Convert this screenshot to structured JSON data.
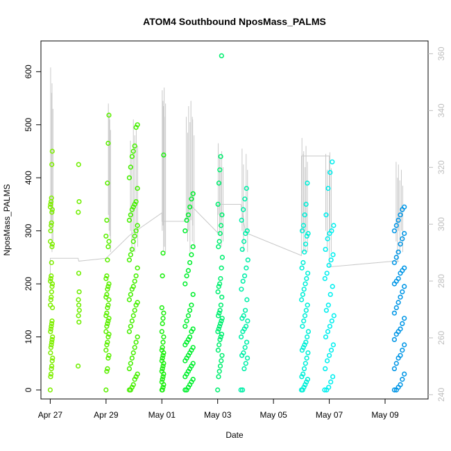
{
  "chart_data": {
    "type": "scatter",
    "title": "ATOM4 Southbound NposMass_PALMS",
    "xlabel": "Date",
    "ylabel": "NposMass_PALMS",
    "x_axis": {
      "type": "date",
      "range": [
        "2018-04-26T16:00",
        "2018-05-10T13:00"
      ],
      "ticks": [
        {
          "date": "2018-04-27",
          "label": "Apr 27"
        },
        {
          "date": "2018-04-29",
          "label": "Apr 29"
        },
        {
          "date": "2018-05-01",
          "label": "May 01"
        },
        {
          "date": "2018-05-03",
          "label": "May 03"
        },
        {
          "date": "2018-05-05",
          "label": "May 05"
        },
        {
          "date": "2018-05-07",
          "label": "May 07"
        },
        {
          "date": "2018-05-09",
          "label": "May 09"
        }
      ]
    },
    "y_axis": {
      "range": [
        -17,
        658
      ],
      "ticks": [
        0,
        100,
        200,
        300,
        400,
        500,
        600
      ]
    },
    "y2_axis": {
      "range": [
        238.5,
        364.5
      ],
      "ticks": [
        240,
        260,
        280,
        300,
        320,
        340,
        360
      ]
    },
    "colors": {
      "points_gradient": [
        "#7fef00",
        "#33ef00",
        "#00ef3a",
        "#00efa0",
        "#00efef",
        "#0096e6"
      ],
      "secondary_line": "#c8c8c8",
      "right_axis": "#bdbdbd",
      "frame": "#000000"
    },
    "flights": [
      {
        "start": "2018-04-27T00:00",
        "end": "2018-04-27T02:00",
        "color": "#7fef00",
        "values": [
          0,
          25,
          30,
          40,
          45,
          55,
          60,
          70,
          80,
          85,
          90,
          95,
          100,
          110,
          115,
          120,
          125,
          130,
          155,
          160,
          170,
          175,
          185,
          195,
          200,
          205,
          210,
          215,
          240,
          270,
          275,
          280,
          300,
          310,
          315,
          335,
          340,
          345,
          350,
          355,
          362,
          425,
          450
        ]
      },
      {
        "start": "2018-04-28T00:00",
        "end": "2018-04-28T01:00",
        "color": "#6fef00",
        "values": [
          45,
          128,
          140,
          150,
          160,
          170,
          185,
          220,
          335,
          355,
          425
        ]
      },
      {
        "start": "2018-04-29T00:00",
        "end": "2018-04-29T03:00",
        "color": "#5bef00",
        "values": [
          0,
          35,
          40,
          60,
          65,
          75,
          85,
          90,
          100,
          105,
          110,
          120,
          125,
          130,
          135,
          140,
          145,
          155,
          160,
          170,
          175,
          180,
          190,
          195,
          200,
          210,
          215,
          245,
          270,
          280,
          290,
          320,
          390,
          465,
          518
        ]
      },
      {
        "start": "2018-04-29T20:00",
        "end": "2018-04-30T04:00",
        "color": "#45ef00",
        "values": [
          0,
          0,
          5,
          10,
          20,
          25,
          30,
          40,
          50,
          60,
          70,
          80,
          90,
          100,
          110,
          120,
          130,
          140,
          150,
          160,
          165,
          170,
          180,
          190,
          195,
          205,
          215,
          230,
          245,
          255,
          265,
          280,
          290,
          300,
          310,
          320,
          330,
          340,
          345,
          350,
          355,
          380,
          400,
          420,
          440,
          450,
          460,
          495,
          500
        ]
      },
      {
        "start": "2018-05-01T00:00",
        "end": "2018-05-01T02:00",
        "color": "#1def10",
        "values": [
          0,
          0,
          5,
          10,
          15,
          20,
          25,
          30,
          35,
          40,
          45,
          50,
          55,
          60,
          65,
          70,
          75,
          80,
          90,
          100,
          110,
          125,
          135,
          145,
          155,
          215,
          258,
          443
        ]
      },
      {
        "start": "2018-05-01T20:00",
        "end": "2018-05-02T04:00",
        "color": "#00ef2e",
        "values": [
          0,
          0,
          5,
          10,
          15,
          20,
          25,
          30,
          35,
          40,
          45,
          50,
          55,
          60,
          65,
          70,
          75,
          80,
          85,
          90,
          95,
          100,
          110,
          115,
          120,
          130,
          140,
          150,
          160,
          180,
          200,
          215,
          225,
          240,
          255,
          270,
          300,
          320,
          330,
          345,
          360,
          370
        ]
      },
      {
        "start": "2018-05-03T00:00",
        "end": "2018-05-03T04:00",
        "color": "#00ef70",
        "values": [
          0,
          25,
          35,
          45,
          55,
          65,
          75,
          85,
          95,
          100,
          105,
          110,
          115,
          120,
          125,
          130,
          135,
          140,
          145,
          150,
          160,
          175,
          185,
          195,
          200,
          210,
          230,
          250,
          270,
          280,
          295,
          310,
          330,
          350,
          390,
          415,
          440,
          630
        ]
      },
      {
        "start": "2018-05-03T20:00",
        "end": "2018-05-04T02:00",
        "color": "#00efa8",
        "values": [
          0,
          0,
          40,
          50,
          60,
          65,
          70,
          80,
          90,
          100,
          110,
          115,
          120,
          130,
          135,
          140,
          150,
          170,
          190,
          205,
          215,
          230,
          245,
          265,
          280,
          295,
          300,
          320,
          340,
          360,
          380
        ]
      },
      {
        "start": "2018-05-06T00:00",
        "end": "2018-05-06T06:00",
        "color": "#00efd8",
        "values": [
          0,
          0,
          5,
          10,
          15,
          20,
          25,
          30,
          40,
          50,
          60,
          70,
          75,
          80,
          85,
          90,
          100,
          110,
          120,
          130,
          140,
          150,
          160,
          170,
          180,
          190,
          200,
          210,
          220,
          230,
          240,
          260,
          275,
          290,
          295,
          300,
          310,
          330,
          350,
          390
        ]
      },
      {
        "start": "2018-05-06T20:00",
        "end": "2018-05-07T04:00",
        "color": "#00efef",
        "values": [
          0,
          0,
          5,
          15,
          25,
          40,
          55,
          65,
          75,
          85,
          100,
          110,
          120,
          130,
          140,
          150,
          160,
          180,
          195,
          210,
          220,
          235,
          245,
          255,
          265,
          285,
          295,
          300,
          310,
          330,
          380,
          410,
          430
        ]
      },
      {
        "start": "2018-05-09T08:00",
        "end": "2018-05-09T18:00",
        "color": "#0096e6",
        "values": [
          0,
          0,
          5,
          10,
          20,
          30,
          40,
          50,
          60,
          65,
          75,
          85,
          95,
          105,
          110,
          115,
          125,
          135,
          145,
          155,
          165,
          175,
          185,
          195,
          200,
          205,
          210,
          220,
          225,
          230,
          240,
          250,
          260,
          275,
          285,
          295,
          300,
          310,
          320,
          330,
          340,
          345
        ]
      }
    ],
    "secondary_series": {
      "axis": "right",
      "points": [
        {
          "x": "2018-04-27T00:00",
          "y": 279
        },
        {
          "x": "2018-04-27T00:05",
          "y": 288
        },
        {
          "x": "2018-04-28T00:00",
          "y": 288
        },
        {
          "x": "2018-04-28T00:30",
          "y": 287
        },
        {
          "x": "2018-04-29T00:00",
          "y": 288
        },
        {
          "x": "2018-04-29T20:00",
          "y": 296
        },
        {
          "x": "2018-05-01T00:00",
          "y": 304
        },
        {
          "x": "2018-05-01T00:05",
          "y": 301
        },
        {
          "x": "2018-05-01T20:00",
          "y": 301
        },
        {
          "x": "2018-05-02T00:00",
          "y": 307
        },
        {
          "x": "2018-05-03T00:00",
          "y": 297
        },
        {
          "x": "2018-05-03T00:05",
          "y": 307
        },
        {
          "x": "2018-05-03T20:00",
          "y": 307
        },
        {
          "x": "2018-05-04T00:00",
          "y": 297
        },
        {
          "x": "2018-05-06T00:00",
          "y": 289
        },
        {
          "x": "2018-05-06T00:05",
          "y": 324
        },
        {
          "x": "2018-05-07T00:00",
          "y": 324
        },
        {
          "x": "2018-05-07T00:05",
          "y": 285
        },
        {
          "x": "2018-05-09T08:00",
          "y": 287
        },
        {
          "x": "2018-05-09T12:00",
          "y": 287
        }
      ],
      "spikes": [
        {
          "x": "2018-04-27T00:20",
          "top": 608,
          "y_from": 300
        },
        {
          "x": "2018-04-27T01:10",
          "top": 560,
          "y_from": 320
        },
        {
          "x": "2018-04-29T02:00",
          "top": 540,
          "y_from": 330
        },
        {
          "x": "2018-04-29T02:40",
          "top": 520,
          "y_from": 300
        },
        {
          "x": "2018-04-29T21:00",
          "top": 470,
          "y_from": 300
        },
        {
          "x": "2018-04-29T23:30",
          "top": 510,
          "y_from": 300
        },
        {
          "x": "2018-04-30T02:00",
          "top": 490,
          "y_from": 310
        },
        {
          "x": "2018-05-01T00:20",
          "top": 565,
          "y_from": 300
        },
        {
          "x": "2018-05-01T01:00",
          "top": 545,
          "y_from": 310
        },
        {
          "x": "2018-05-01T02:00",
          "top": 570,
          "y_from": 300
        },
        {
          "x": "2018-05-01T21:00",
          "top": 515,
          "y_from": 320
        },
        {
          "x": "2018-05-01T23:00",
          "top": 535,
          "y_from": 300
        },
        {
          "x": "2018-05-02T01:00",
          "top": 545,
          "y_from": 320
        },
        {
          "x": "2018-05-02T02:30",
          "top": 510,
          "y_from": 310
        },
        {
          "x": "2018-05-03T00:30",
          "top": 465,
          "y_from": 330
        },
        {
          "x": "2018-05-03T02:00",
          "top": 440,
          "y_from": 310
        },
        {
          "x": "2018-05-03T03:30",
          "top": 450,
          "y_from": 320
        },
        {
          "x": "2018-05-03T21:00",
          "top": 455,
          "y_from": 300
        },
        {
          "x": "2018-05-04T00:30",
          "top": 445,
          "y_from": 300
        },
        {
          "x": "2018-05-06T00:30",
          "top": 475,
          "y_from": 300
        },
        {
          "x": "2018-05-06T02:00",
          "top": 450,
          "y_from": 300
        },
        {
          "x": "2018-05-06T04:00",
          "top": 460,
          "y_from": 300
        },
        {
          "x": "2018-05-06T21:00",
          "top": 445,
          "y_from": 300
        },
        {
          "x": "2018-05-07T00:30",
          "top": 448,
          "y_from": 300
        },
        {
          "x": "2018-05-09T09:30",
          "top": 430,
          "y_from": 280
        },
        {
          "x": "2018-05-09T11:30",
          "top": 425,
          "y_from": 300
        },
        {
          "x": "2018-05-09T14:00",
          "top": 415,
          "y_from": 300
        }
      ]
    }
  }
}
